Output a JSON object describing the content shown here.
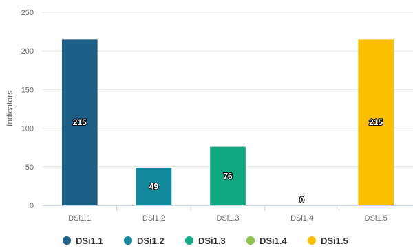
{
  "chart_data": {
    "type": "bar",
    "title": "",
    "xlabel": "",
    "ylabel": "Indicators",
    "ylim": [
      0,
      250
    ],
    "yticks": [
      0,
      50,
      100,
      150,
      200,
      250
    ],
    "categories": [
      "DSi1.1",
      "DSi1.2",
      "DSi1.3",
      "DSi1.4",
      "DSi1.5"
    ],
    "values": [
      215,
      49,
      76,
      0,
      215
    ],
    "colors": [
      "#1b5e86",
      "#11899a",
      "#11a982",
      "#8bc34a",
      "#fcbf00"
    ],
    "grid": true,
    "data_labels": true,
    "legend": {
      "placement": "bottom-center",
      "entries": [
        "DSi1.1",
        "DSi1.2",
        "DSi1.3",
        "DSi1.4",
        "DSi1.5"
      ]
    }
  }
}
